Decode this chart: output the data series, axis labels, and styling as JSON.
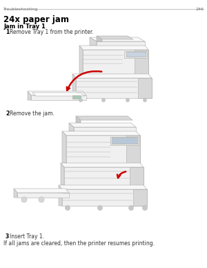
{
  "bg_color": "#ffffff",
  "header_text": "Troubleshooting",
  "header_page": "246",
  "title": "24x paper jam",
  "subtitle": "Jam in Tray 1",
  "step1_num": "1",
  "step1_text": "Remove Tray 1 from the printer.",
  "step2_num": "2",
  "step2_text": "Remove the jam.",
  "step3_num": "3",
  "step3_text": "Insert Tray 1.",
  "footer_text": "If all jams are cleared, then the printer resumes printing.",
  "line_color": "#aaaaaa",
  "body_fill": "#f0f0f0",
  "body_edge": "#aaaaaa",
  "dark_fill": "#d8d8d8",
  "darker_fill": "#c8c8c8",
  "white_fill": "#f8f8f8",
  "red_arrow": "#cc0000",
  "fig_width": 3.0,
  "fig_height": 3.88,
  "dpi": 100
}
